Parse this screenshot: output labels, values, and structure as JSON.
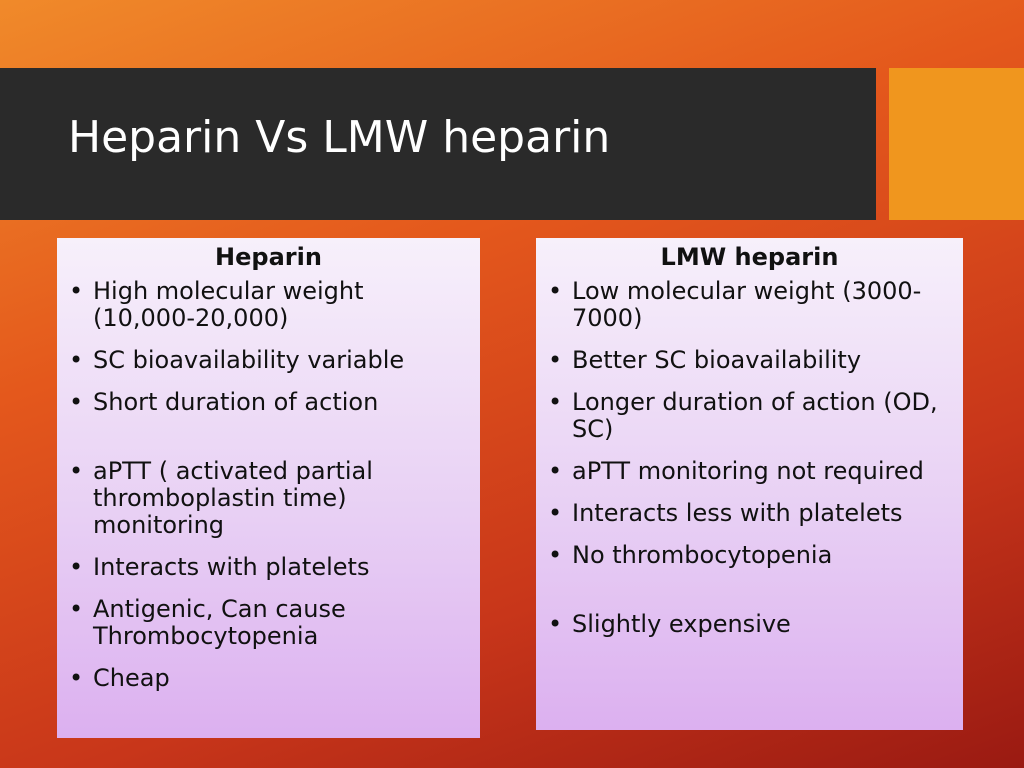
{
  "title": "Heparin Vs LMW heparin",
  "columns": [
    {
      "heading": "Heparin",
      "items": [
        "High molecular weight (10,000-20,000)",
        "SC bioavailability variable",
        "Short duration of action",
        "aPTT ( activated partial thromboplastin time) monitoring",
        "Interacts with platelets",
        "Antigenic, Can cause Thrombocytopenia",
        "Cheap"
      ]
    },
    {
      "heading": "LMW heparin",
      "items": [
        "Low molecular weight (3000-7000)",
        "Better SC bioavailability",
        "Longer duration of action (OD, SC)",
        "aPTT monitoring not required",
        "Interacts less with platelets",
        "No thrombocytopenia",
        "Slightly expensive"
      ]
    }
  ]
}
